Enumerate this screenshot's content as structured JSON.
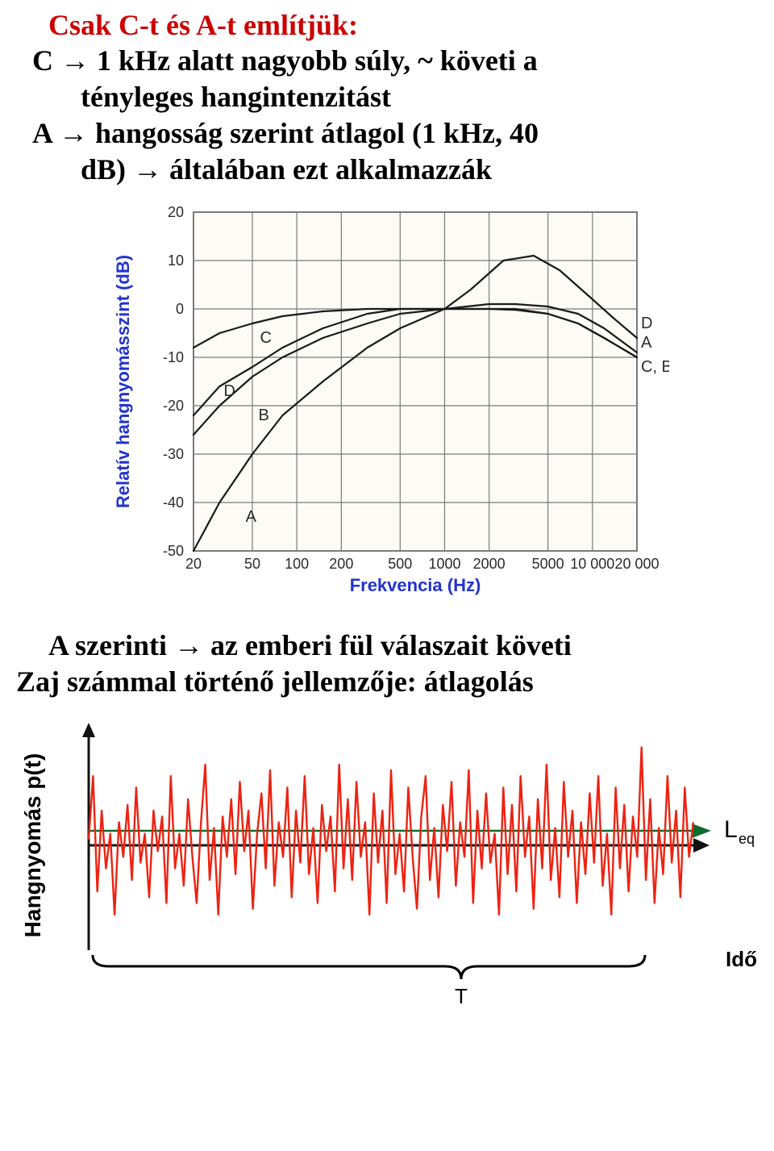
{
  "title": "Csak C-t és A-t említjük:",
  "line1a": "C → 1 kHz alatt nagyobb súly, ~ követi a",
  "line1b": "tényleges hangintenzitást",
  "line2a": "A → hangosság szerint átlagol (1 kHz, 40",
  "line2b": "dB) → általában ezt alkalmazzák",
  "line3": "A szerinti → az emberi fül válaszait követi",
  "line4": "Zaj számmal történő jellemzője: átlagolás",
  "chart": {
    "ylabel": "Relatív hangnyomásszint (dB)",
    "xlabel": "Frekvencia (Hz)",
    "yticks": [
      "20",
      "10",
      "0",
      "-10",
      "-20",
      "-30",
      "-40",
      "-50"
    ],
    "xticks": [
      "20",
      "50",
      "100",
      "200",
      "500",
      "1000",
      "2000",
      "5000",
      "10 000",
      "20 000"
    ],
    "ylabel_fontsize": 22,
    "xlabel_fontsize": 22,
    "tick_fontsize": 18,
    "curve_label_fontsize": 20,
    "background_color": "#fcfbf6",
    "grid_color": "#7a7a7a",
    "curve_color": "#1a1a1a",
    "curve_stroke": 2.2,
    "ylim": [
      -50,
      20
    ],
    "xlim_log": [
      20,
      20000
    ],
    "labels": {
      "C_in": "C",
      "D_in": "D",
      "B_in": "B",
      "A_in": "A",
      "D_right": "D",
      "A_right": "A",
      "CB_right": "C, B"
    },
    "curves": {
      "A": [
        [
          20,
          -50
        ],
        [
          30,
          -40
        ],
        [
          50,
          -30
        ],
        [
          80,
          -22
        ],
        [
          150,
          -15
        ],
        [
          300,
          -8
        ],
        [
          500,
          -4
        ],
        [
          1000,
          0
        ],
        [
          2000,
          1
        ],
        [
          3000,
          1
        ],
        [
          5000,
          0.5
        ],
        [
          8000,
          -1
        ],
        [
          12000,
          -4
        ],
        [
          20000,
          -9
        ]
      ],
      "B": [
        [
          20,
          -26
        ],
        [
          30,
          -20
        ],
        [
          50,
          -14
        ],
        [
          80,
          -10
        ],
        [
          150,
          -6
        ],
        [
          300,
          -3
        ],
        [
          500,
          -1
        ],
        [
          1000,
          0
        ],
        [
          2000,
          0
        ],
        [
          3000,
          0
        ],
        [
          5000,
          -1
        ],
        [
          8000,
          -3
        ],
        [
          12000,
          -6
        ],
        [
          20000,
          -10
        ]
      ],
      "C": [
        [
          20,
          -8
        ],
        [
          30,
          -5
        ],
        [
          50,
          -3
        ],
        [
          80,
          -1.5
        ],
        [
          150,
          -0.5
        ],
        [
          300,
          0
        ],
        [
          500,
          0
        ],
        [
          1000,
          0
        ],
        [
          2000,
          0
        ],
        [
          3000,
          -0.2
        ],
        [
          5000,
          -1
        ],
        [
          8000,
          -3
        ],
        [
          12000,
          -6
        ],
        [
          20000,
          -10
        ]
      ],
      "D": [
        [
          20,
          -22
        ],
        [
          30,
          -16
        ],
        [
          50,
          -12
        ],
        [
          80,
          -8
        ],
        [
          150,
          -4
        ],
        [
          300,
          -1
        ],
        [
          500,
          0
        ],
        [
          1000,
          0
        ],
        [
          1500,
          4
        ],
        [
          2500,
          10
        ],
        [
          4000,
          11
        ],
        [
          6000,
          8
        ],
        [
          10000,
          2
        ],
        [
          14000,
          -2
        ],
        [
          20000,
          -6
        ]
      ]
    }
  },
  "noise": {
    "ylabel": "Hangnyomás p(t)",
    "xlabel_right": "Idő (s)",
    "leq_label": "L",
    "leq_sub": "eq",
    "T_label": "T",
    "ylabel_fontsize": 28,
    "label_fontsize": 26,
    "signal_color": "#ee2211",
    "axis_color": "#111111",
    "leq_line_color": "#0b6b2a",
    "brace_color": "#000000",
    "signal_stroke": 2.4,
    "signal": [
      [
        0,
        0.05
      ],
      [
        5,
        0.6
      ],
      [
        10,
        -0.4
      ],
      [
        15,
        0.3
      ],
      [
        20,
        -0.2
      ],
      [
        25,
        0.1
      ],
      [
        30,
        -0.6
      ],
      [
        35,
        0.2
      ],
      [
        40,
        -0.1
      ],
      [
        45,
        0.35
      ],
      [
        50,
        -0.3
      ],
      [
        55,
        0.5
      ],
      [
        60,
        -0.15
      ],
      [
        65,
        0.1
      ],
      [
        70,
        -0.45
      ],
      [
        75,
        0.3
      ],
      [
        80,
        -0.05
      ],
      [
        85,
        0.25
      ],
      [
        90,
        -0.5
      ],
      [
        95,
        0.6
      ],
      [
        100,
        -0.2
      ],
      [
        105,
        0.1
      ],
      [
        110,
        -0.35
      ],
      [
        115,
        0.4
      ],
      [
        120,
        -0.1
      ],
      [
        125,
        -0.5
      ],
      [
        130,
        0.2
      ],
      [
        135,
        0.7
      ],
      [
        140,
        -0.3
      ],
      [
        145,
        0.15
      ],
      [
        150,
        -0.6
      ],
      [
        155,
        0.25
      ],
      [
        160,
        -0.1
      ],
      [
        165,
        0.4
      ],
      [
        170,
        -0.25
      ],
      [
        175,
        0.55
      ],
      [
        180,
        -0.05
      ],
      [
        185,
        0.3
      ],
      [
        190,
        -0.55
      ],
      [
        195,
        0.1
      ],
      [
        200,
        0.45
      ],
      [
        205,
        -0.2
      ],
      [
        210,
        0.65
      ],
      [
        215,
        -0.35
      ],
      [
        220,
        0.2
      ],
      [
        225,
        -0.1
      ],
      [
        230,
        0.5
      ],
      [
        235,
        -0.45
      ],
      [
        240,
        0.3
      ],
      [
        245,
        -0.15
      ],
      [
        250,
        0.6
      ],
      [
        255,
        -0.25
      ],
      [
        260,
        0.15
      ],
      [
        265,
        -0.5
      ],
      [
        270,
        0.35
      ],
      [
        275,
        -0.05
      ],
      [
        280,
        0.25
      ],
      [
        285,
        -0.4
      ],
      [
        290,
        0.7
      ],
      [
        295,
        -0.2
      ],
      [
        300,
        0.4
      ],
      [
        305,
        -0.3
      ],
      [
        310,
        0.55
      ],
      [
        315,
        -0.1
      ],
      [
        320,
        0.2
      ],
      [
        325,
        -0.6
      ],
      [
        330,
        0.45
      ],
      [
        335,
        -0.15
      ],
      [
        340,
        0.3
      ],
      [
        345,
        -0.5
      ],
      [
        350,
        0.65
      ],
      [
        355,
        -0.25
      ],
      [
        360,
        0.1
      ],
      [
        365,
        -0.4
      ],
      [
        370,
        0.5
      ],
      [
        375,
        -0.1
      ],
      [
        380,
        -0.55
      ],
      [
        385,
        0.25
      ],
      [
        390,
        0.6
      ],
      [
        395,
        -0.3
      ],
      [
        400,
        0.15
      ],
      [
        405,
        -0.45
      ],
      [
        410,
        0.35
      ],
      [
        415,
        -0.05
      ],
      [
        420,
        0.55
      ],
      [
        425,
        -0.35
      ],
      [
        430,
        0.2
      ],
      [
        435,
        -0.1
      ],
      [
        440,
        0.65
      ],
      [
        445,
        -0.5
      ],
      [
        450,
        0.3
      ],
      [
        455,
        -0.2
      ],
      [
        460,
        0.45
      ],
      [
        465,
        -0.15
      ],
      [
        470,
        0.1
      ],
      [
        475,
        -0.6
      ],
      [
        480,
        0.5
      ],
      [
        485,
        -0.25
      ],
      [
        490,
        0.35
      ],
      [
        495,
        -0.4
      ],
      [
        500,
        0.6
      ],
      [
        505,
        -0.1
      ],
      [
        510,
        0.25
      ],
      [
        515,
        -0.55
      ],
      [
        520,
        0.4
      ],
      [
        525,
        -0.2
      ],
      [
        530,
        0.7
      ],
      [
        535,
        -0.3
      ],
      [
        540,
        0.15
      ],
      [
        545,
        -0.45
      ],
      [
        550,
        0.55
      ],
      [
        555,
        -0.1
      ],
      [
        560,
        0.3
      ],
      [
        565,
        -0.5
      ],
      [
        570,
        0.2
      ],
      [
        575,
        -0.25
      ],
      [
        580,
        0.45
      ],
      [
        585,
        -0.15
      ],
      [
        590,
        0.6
      ],
      [
        595,
        -0.35
      ],
      [
        600,
        0.1
      ],
      [
        605,
        -0.6
      ],
      [
        610,
        0.5
      ],
      [
        615,
        -0.2
      ],
      [
        620,
        0.35
      ],
      [
        625,
        -0.4
      ],
      [
        630,
        0.25
      ],
      [
        635,
        -0.1
      ],
      [
        640,
        0.85
      ],
      [
        645,
        -0.3
      ],
      [
        650,
        0.4
      ],
      [
        655,
        -0.5
      ],
      [
        660,
        0.15
      ],
      [
        665,
        -0.25
      ],
      [
        670,
        0.6
      ],
      [
        675,
        -0.15
      ],
      [
        680,
        0.3
      ],
      [
        685,
        -0.45
      ],
      [
        690,
        0.5
      ],
      [
        695,
        -0.1
      ],
      [
        700,
        0.2
      ]
    ]
  }
}
